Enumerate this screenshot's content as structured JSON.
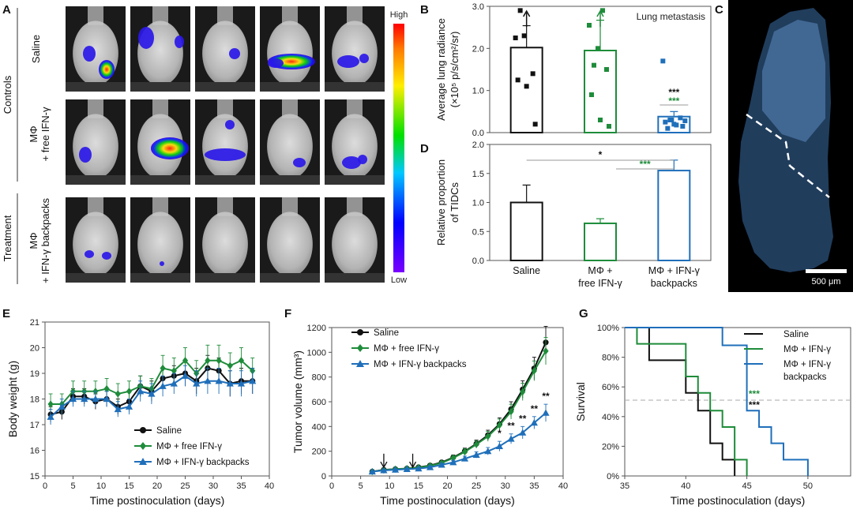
{
  "figure": {
    "panel_letters": [
      "A",
      "B",
      "C",
      "D",
      "E",
      "F",
      "G"
    ],
    "colors": {
      "saline": "#111111",
      "free": "#1e8c3a",
      "backpack": "#1f6fba"
    }
  },
  "panel_a": {
    "group_controls": "Controls",
    "group_treatment": "Treatment",
    "rows": [
      {
        "label_1": "Saline",
        "label_2": ""
      },
      {
        "label_1": "MΦ",
        "label_2": "+ free IFN-γ"
      },
      {
        "label_1": "MΦ",
        "label_2": "+ IFN-γ backpacks"
      }
    ],
    "colorbar_high": "High",
    "colorbar_low": "Low"
  },
  "panel_c": {
    "scalebar_label": "500 μm"
  },
  "chart_data": [
    {
      "id": "B",
      "type": "bar",
      "annotation": "Lung metastasis",
      "ylabel_1": "Average lung radiance",
      "ylabel_2": "(×10⁵ p/s/cm²/sr)",
      "ylim": [
        0,
        3.0
      ],
      "yticks": [
        "0.0",
        "1.0",
        "2.0",
        "3.0"
      ],
      "categories": [
        "Saline",
        "MΦ + free IFN-γ",
        "MΦ + IFN-γ backpacks"
      ],
      "values": [
        2.02,
        1.95,
        0.38
      ],
      "errors": [
        0.52,
        0.72,
        0.12
      ],
      "points": [
        [
          2.25,
          2.3,
          1.4,
          1.25,
          1.1,
          0.2,
          2.9
        ],
        [
          2.55,
          2.0,
          1.5,
          0.9,
          0.3,
          0.15,
          1.6,
          2.9
        ],
        [
          1.7,
          0.3,
          0.35,
          0.25,
          0.2,
          0.15,
          0.1,
          0.18,
          0.28,
          0.3
        ]
      ],
      "off_scale_arrow": [
        true,
        true,
        false
      ],
      "stars": [
        {
          "text": "***",
          "color": "#111111"
        },
        {
          "text": "***",
          "color": "#1e8c3a"
        }
      ]
    },
    {
      "id": "D",
      "type": "bar",
      "ylabel_1": "Relative proportion",
      "ylabel_2": "of TIDCs",
      "ylim": [
        0,
        2.0
      ],
      "yticks": [
        "0.0",
        "0.5",
        "1.0",
        "1.5",
        "2.0"
      ],
      "categories": [
        "Saline",
        "MΦ + free IFN-γ",
        "MΦ + IFN-γ backpacks"
      ],
      "cat_lines": [
        [
          "Saline"
        ],
        [
          "MΦ +",
          "free IFN-γ"
        ],
        [
          "MΦ + IFN-γ",
          "backpacks"
        ]
      ],
      "values": [
        1.0,
        0.64,
        1.55
      ],
      "errors": [
        0.3,
        0.08,
        0.18
      ],
      "sig": [
        {
          "text": "*",
          "color": "#111111"
        },
        {
          "text": "***",
          "color": "#1e8c3a"
        }
      ]
    },
    {
      "id": "E",
      "type": "line",
      "xlabel": "Time postinoculation (days)",
      "ylabel": "Body weight (g)",
      "xlim": [
        0,
        40
      ],
      "ylim": [
        15,
        21
      ],
      "xticks": [
        "0",
        "5",
        "10",
        "15",
        "20",
        "25",
        "30",
        "35",
        "40"
      ],
      "yticks": [
        "15",
        "16",
        "17",
        "18",
        "19",
        "20",
        "21"
      ],
      "x": [
        1,
        3,
        5,
        7,
        9,
        11,
        13,
        15,
        17,
        19,
        21,
        23,
        25,
        27,
        29,
        31,
        33,
        35,
        37
      ],
      "series": [
        {
          "name": "Saline",
          "values": [
            17.4,
            17.5,
            18.1,
            18.1,
            17.9,
            18.0,
            17.7,
            17.9,
            18.5,
            18.3,
            18.8,
            18.9,
            19.0,
            18.7,
            19.2,
            19.1,
            18.6,
            18.7,
            18.7
          ],
          "err": [
            0.3,
            0.3,
            0.3,
            0.3,
            0.3,
            0.3,
            0.3,
            0.4,
            0.4,
            0.4,
            0.4,
            0.4,
            0.5,
            0.5,
            0.5,
            0.5,
            0.5,
            0.5,
            0.5
          ]
        },
        {
          "name": "MΦ + free IFN-γ",
          "values": [
            17.8,
            17.8,
            18.3,
            18.3,
            18.3,
            18.4,
            18.2,
            18.3,
            18.5,
            18.4,
            19.2,
            19.1,
            19.5,
            19.0,
            19.5,
            19.5,
            19.3,
            19.5,
            19.1
          ],
          "err": [
            0.4,
            0.4,
            0.4,
            0.4,
            0.4,
            0.4,
            0.4,
            0.4,
            0.4,
            0.4,
            0.5,
            0.5,
            0.5,
            0.5,
            0.6,
            0.6,
            0.5,
            0.5,
            0.5
          ]
        },
        {
          "name": "MΦ + IFN-γ backpacks",
          "values": [
            17.3,
            17.7,
            18.0,
            18.0,
            18.0,
            18.0,
            17.6,
            17.7,
            18.3,
            18.2,
            18.5,
            18.6,
            18.9,
            18.6,
            18.7,
            18.7,
            18.6,
            18.6,
            18.7
          ],
          "err": [
            0.3,
            0.3,
            0.3,
            0.3,
            0.3,
            0.3,
            0.3,
            0.3,
            0.4,
            0.4,
            0.4,
            0.4,
            0.4,
            0.5,
            0.5,
            0.5,
            0.5,
            0.5,
            0.5
          ]
        }
      ]
    },
    {
      "id": "F",
      "type": "line",
      "xlabel": "Time postinoculation (days)",
      "ylabel": "Tumor volume (mm³)",
      "xlim": [
        0,
        40
      ],
      "ylim": [
        0,
        1200
      ],
      "xticks": [
        "0",
        "5",
        "10",
        "15",
        "20",
        "25",
        "30",
        "35",
        "40"
      ],
      "yticks": [
        "0",
        "200",
        "400",
        "600",
        "800",
        "1000",
        "1200"
      ],
      "x": [
        7,
        9,
        11,
        13,
        15,
        17,
        19,
        21,
        23,
        25,
        27,
        29,
        31,
        33,
        35,
        37
      ],
      "series": [
        {
          "name": "Saline",
          "values": [
            35,
            50,
            55,
            60,
            70,
            85,
            110,
            150,
            200,
            260,
            330,
            420,
            540,
            700,
            870,
            1080
          ],
          "err": [
            5,
            8,
            8,
            10,
            10,
            12,
            15,
            20,
            25,
            30,
            40,
            50,
            60,
            70,
            90,
            130
          ]
        },
        {
          "name": "MΦ + free IFN-γ",
          "values": [
            35,
            48,
            55,
            60,
            68,
            82,
            105,
            145,
            195,
            255,
            320,
            410,
            520,
            680,
            850,
            1010
          ],
          "err": [
            5,
            8,
            8,
            10,
            10,
            12,
            15,
            20,
            25,
            30,
            40,
            50,
            60,
            70,
            80,
            110
          ]
        },
        {
          "name": "MΦ + IFN-γ backpacks",
          "values": [
            35,
            45,
            50,
            55,
            60,
            70,
            90,
            110,
            140,
            170,
            200,
            240,
            300,
            350,
            430,
            510
          ],
          "err": [
            5,
            6,
            6,
            8,
            8,
            10,
            12,
            15,
            20,
            25,
            30,
            40,
            40,
            50,
            50,
            70
          ]
        }
      ],
      "injection_days": [
        9,
        14
      ],
      "star_days": [
        29,
        31,
        33,
        35,
        37
      ],
      "star_labels": [
        "*",
        "**",
        "**",
        "**",
        "**"
      ]
    },
    {
      "id": "G",
      "type": "line",
      "xlabel": "Time postinoculation (days)",
      "ylabel": "Survival",
      "xlim": [
        35,
        53.5
      ],
      "ylim": [
        0,
        100
      ],
      "xticks": [
        "35",
        "40",
        "45",
        "50"
      ],
      "yticks": [
        "0%",
        "20%",
        "40%",
        "60%",
        "80%",
        "100%"
      ],
      "median_line": 50,
      "series": [
        {
          "name": "Saline",
          "steps": [
            [
              35,
              100
            ],
            [
              37,
              100
            ],
            [
              37,
              78
            ],
            [
              40,
              78
            ],
            [
              40,
              56
            ],
            [
              41,
              56
            ],
            [
              41,
              44
            ],
            [
              42,
              44
            ],
            [
              42,
              22
            ],
            [
              43,
              22
            ],
            [
              43,
              11
            ],
            [
              44,
              11
            ],
            [
              44,
              0
            ]
          ]
        },
        {
          "name": "MΦ + IFN-γ",
          "steps": [
            [
              35,
              100
            ],
            [
              36,
              100
            ],
            [
              36,
              89
            ],
            [
              40,
              89
            ],
            [
              40,
              67
            ],
            [
              41,
              67
            ],
            [
              41,
              56
            ],
            [
              42,
              56
            ],
            [
              42,
              44
            ],
            [
              43,
              44
            ],
            [
              43,
              33
            ],
            [
              44,
              33
            ],
            [
              44,
              11
            ],
            [
              45,
              11
            ],
            [
              45,
              0
            ]
          ]
        },
        {
          "name": "MΦ + IFN-γ backpacks",
          "steps": [
            [
              35,
              100
            ],
            [
              43,
              100
            ],
            [
              43,
              88
            ],
            [
              45,
              88
            ],
            [
              45,
              44
            ],
            [
              46,
              44
            ],
            [
              46,
              33
            ],
            [
              47,
              33
            ],
            [
              47,
              22
            ],
            [
              48,
              22
            ],
            [
              48,
              11
            ],
            [
              50,
              11
            ],
            [
              50,
              0
            ]
          ]
        }
      ],
      "legend": [
        [
          "Saline"
        ],
        [
          "MΦ + IFN-γ"
        ],
        [
          "MΦ + IFN-γ",
          "backpacks"
        ]
      ],
      "stars": [
        {
          "text": "***",
          "color": "#1e8c3a"
        },
        {
          "text": "***",
          "color": "#111111"
        }
      ]
    }
  ]
}
